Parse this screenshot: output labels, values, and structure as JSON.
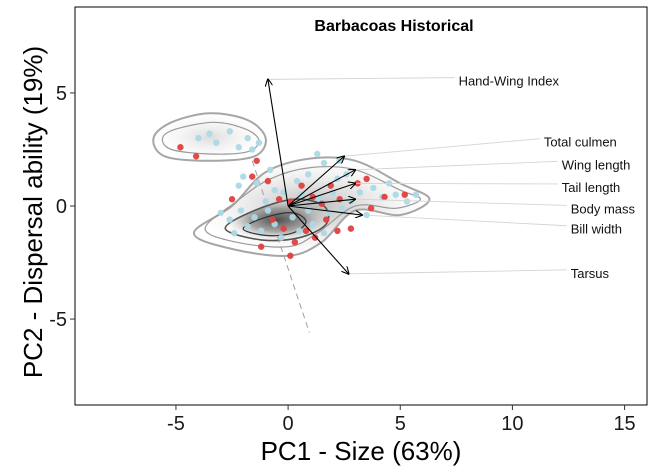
{
  "chart_data": {
    "type": "scatter",
    "title": "Barbacoas Historical",
    "xlabel": "PC1 - Size (63%)",
    "ylabel": "PC2 - Dispersal ability (19%)",
    "xlim": [
      -9.5,
      16
    ],
    "ylim": [
      -8.8,
      8.8
    ],
    "xticks": [
      -5,
      0,
      5,
      10,
      15
    ],
    "yticks": [
      -5,
      0,
      5
    ],
    "grid": false,
    "density_contours": [
      [
        [
          -5.2,
          3.7
        ],
        [
          -3.5,
          4.1
        ],
        [
          -1.8,
          3.8
        ],
        [
          -1.0,
          3.0
        ],
        [
          -1.5,
          2.2
        ],
        [
          -3.5,
          2.0
        ],
        [
          -5.5,
          2.2
        ],
        [
          -6.0,
          3.0
        ]
      ],
      [
        [
          -5.0,
          3.4
        ],
        [
          -3.3,
          3.7
        ],
        [
          -1.9,
          3.4
        ],
        [
          -1.3,
          2.9
        ],
        [
          -1.8,
          2.4
        ],
        [
          -3.5,
          2.3
        ],
        [
          -5.2,
          2.5
        ],
        [
          -5.6,
          3.0
        ]
      ],
      [
        [
          -4.2,
          -1.2
        ],
        [
          -2.5,
          0.0
        ],
        [
          -1.0,
          1.5
        ],
        [
          1.0,
          2.1
        ],
        [
          3.0,
          2.0
        ],
        [
          5.0,
          1.0
        ],
        [
          6.3,
          0.3
        ],
        [
          5.0,
          -0.4
        ],
        [
          3.0,
          -0.2
        ],
        [
          1.5,
          -1.6
        ],
        [
          0.0,
          -2.2
        ],
        [
          -2.5,
          -1.9
        ]
      ],
      [
        [
          -3.7,
          -1.0
        ],
        [
          -2.3,
          0.2
        ],
        [
          -0.8,
          1.2
        ],
        [
          1.0,
          1.7
        ],
        [
          3.0,
          1.6
        ],
        [
          5.0,
          0.7
        ],
        [
          5.9,
          0.3
        ],
        [
          4.8,
          -0.1
        ],
        [
          3.0,
          0.0
        ],
        [
          1.3,
          -1.2
        ],
        [
          0.0,
          -1.8
        ],
        [
          -2.3,
          -1.6
        ]
      ],
      [
        [
          -2.8,
          -1.0
        ],
        [
          -1.5,
          -0.2
        ],
        [
          0.3,
          0.3
        ],
        [
          1.6,
          0.0
        ],
        [
          1.7,
          -0.8
        ],
        [
          0.5,
          -1.4
        ],
        [
          -1.2,
          -1.5
        ]
      ],
      [
        [
          -2.0,
          -1.0
        ],
        [
          -1.0,
          -0.5
        ],
        [
          0.2,
          -0.3
        ],
        [
          0.8,
          -0.7
        ],
        [
          0.2,
          -1.2
        ],
        [
          -1.0,
          -1.3
        ]
      ]
    ],
    "series": [
      {
        "color": "#add8e6",
        "points": [
          [
            -4.0,
            3.0
          ],
          [
            -3.5,
            3.2
          ],
          [
            -3.2,
            2.8
          ],
          [
            -2.6,
            3.3
          ],
          [
            -2.2,
            2.6
          ],
          [
            -1.8,
            3.0
          ],
          [
            -1.6,
            2.5
          ],
          [
            -1.3,
            2.8
          ],
          [
            -2.0,
            1.3
          ],
          [
            -2.2,
            0.9
          ],
          [
            -0.8,
            1.6
          ],
          [
            -0.6,
            0.7
          ],
          [
            -0.2,
            0.6
          ],
          [
            0.4,
            1.1
          ],
          [
            0.9,
            1.4
          ],
          [
            1.3,
            2.3
          ],
          [
            1.6,
            1.9
          ],
          [
            2.2,
            1.2
          ],
          [
            2.6,
            1.4
          ],
          [
            2.0,
            0.6
          ],
          [
            2.8,
            0.2
          ],
          [
            3.2,
            0.6
          ],
          [
            3.8,
            0.8
          ],
          [
            4.2,
            0.4
          ],
          [
            4.8,
            0.5
          ],
          [
            5.3,
            0.2
          ],
          [
            5.7,
            0.5
          ],
          [
            -2.6,
            -0.6
          ],
          [
            -2.1,
            -0.2
          ],
          [
            -1.8,
            -0.9
          ],
          [
            -1.5,
            -0.5
          ],
          [
            -1.2,
            -1.1
          ],
          [
            -0.9,
            -0.2
          ],
          [
            -0.6,
            -0.8
          ],
          [
            -0.3,
            -1.4
          ],
          [
            0.2,
            -0.5
          ],
          [
            0.5,
            -1.1
          ],
          [
            0.9,
            -0.2
          ],
          [
            1.1,
            -0.8
          ],
          [
            1.4,
            0.3
          ],
          [
            1.8,
            -0.3
          ],
          [
            2.4,
            -0.1
          ],
          [
            -3.0,
            -0.3
          ],
          [
            -2.4,
            -1.2
          ],
          [
            0.3,
            0.1
          ],
          [
            3.5,
            -0.4
          ],
          [
            4.5,
            1.0
          ],
          [
            2.3,
            2.0
          ],
          [
            -1.0,
            0.2
          ],
          [
            1.6,
            -1.2
          ],
          [
            0.6,
            0.5
          ],
          [
            -1.4,
            1.0
          ]
        ]
      },
      {
        "color": "#e04040",
        "points": [
          [
            -4.8,
            2.6
          ],
          [
            -4.1,
            2.2
          ],
          [
            -1.4,
            2.0
          ],
          [
            -0.9,
            1.1
          ],
          [
            -0.4,
            0.3
          ],
          [
            0.1,
            0.2
          ],
          [
            0.6,
            0.9
          ],
          [
            1.1,
            0.4
          ],
          [
            1.5,
            0.1
          ],
          [
            1.9,
            0.9
          ],
          [
            2.3,
            0.3
          ],
          [
            3.1,
            1.0
          ],
          [
            3.5,
            1.2
          ],
          [
            4.3,
            0.4
          ],
          [
            5.2,
            0.5
          ],
          [
            -1.6,
            1.3
          ],
          [
            -0.7,
            -0.6
          ],
          [
            -0.2,
            -1.0
          ],
          [
            0.3,
            -1.6
          ],
          [
            0.8,
            -1.1
          ],
          [
            1.2,
            -1.4
          ],
          [
            1.7,
            -0.6
          ],
          [
            2.2,
            -1.1
          ],
          [
            -2.5,
            0.3
          ],
          [
            -1.2,
            -1.8
          ],
          [
            0.1,
            -2.2
          ],
          [
            2.8,
            -1.0
          ],
          [
            3.7,
            -0.1
          ]
        ]
      }
    ],
    "loadings": [
      {
        "name": "Hand-Wing Index",
        "x": -0.9,
        "y": 5.6,
        "label_x": 7.6,
        "label_y": 5.5
      },
      {
        "name": "Total culmen",
        "x": 2.5,
        "y": 2.2,
        "label_x": 11.4,
        "label_y": 2.8
      },
      {
        "name": "Wing length",
        "x": 3.0,
        "y": 1.6,
        "label_x": 12.2,
        "label_y": 1.8
      },
      {
        "name": "Tail length",
        "x": 3.0,
        "y": 1.0,
        "label_x": 12.2,
        "label_y": 0.8
      },
      {
        "name": "Body mass",
        "x": 3.0,
        "y": 0.3,
        "label_x": 12.6,
        "label_y": -0.15
      },
      {
        "name": "Bill width",
        "x": 3.3,
        "y": -0.4,
        "label_x": 12.6,
        "label_y": -1.05
      },
      {
        "name": "Tarsus",
        "x": 2.7,
        "y": -3.0,
        "label_x": 12.6,
        "label_y": -3.0
      }
    ],
    "dashed_axis": [
      [
        -1.6,
        2.0
      ],
      [
        0.95,
        -5.6
      ]
    ]
  }
}
